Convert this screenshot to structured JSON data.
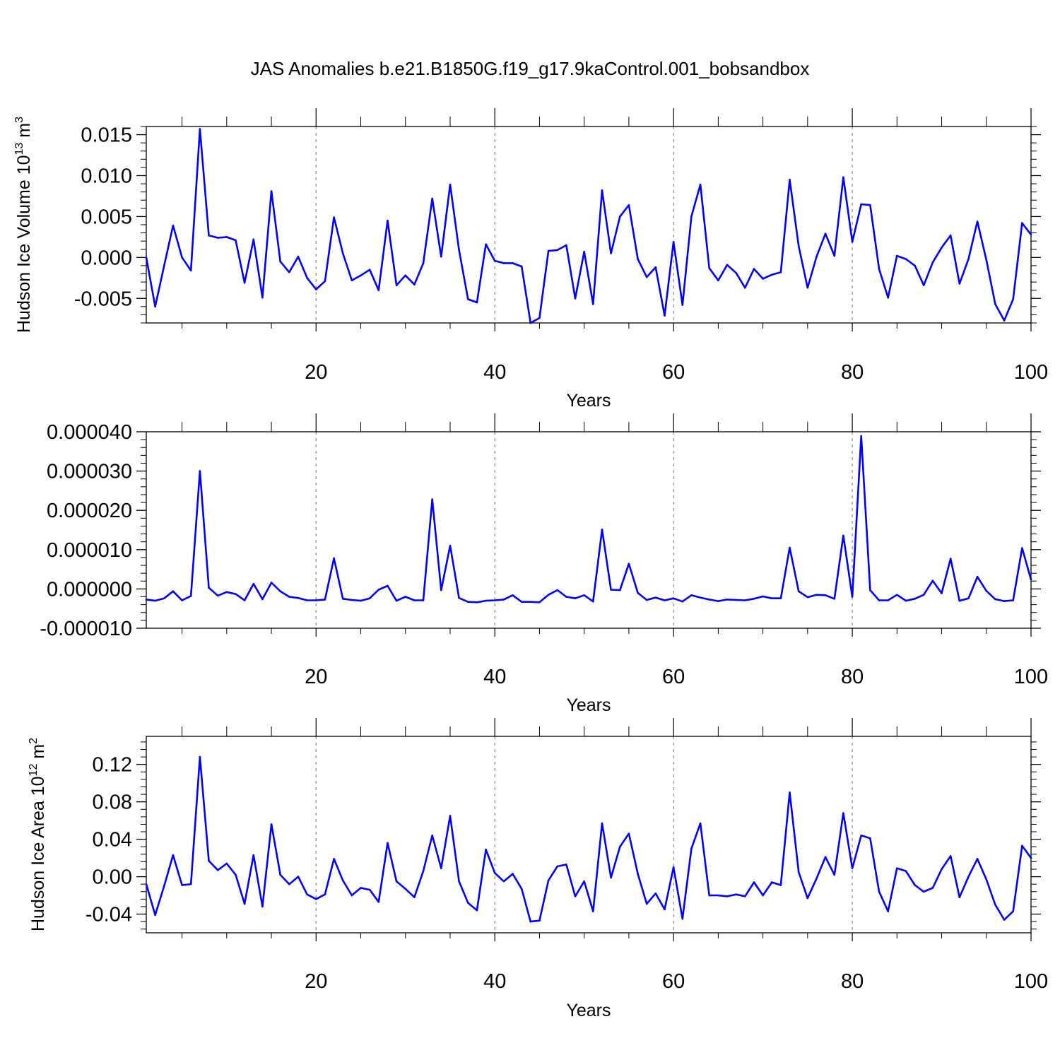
{
  "title": "JAS Anomalies b.e21.B1850G.f19_g17.9kaControl.001_bobsandbox",
  "line_color": "#0000ff",
  "grid_color": "#888888",
  "chart_data": [
    {
      "type": "line",
      "ylabel": "Hudson Ice Volume 10",
      "ylabel_sup": "13",
      "ylabel_unit": " m",
      "ylabel_unit_sup": "3",
      "xlabel": "Years",
      "xlim": [
        1,
        100
      ],
      "ylim": [
        -0.008,
        0.016
      ],
      "xticks": [
        20,
        40,
        60,
        80,
        100
      ],
      "yticks": [
        -0.005,
        0.0,
        0.005,
        0.01,
        0.015
      ],
      "ytick_labels": [
        "-0.005",
        "0.000",
        "0.005",
        "0.010",
        "0.015"
      ],
      "grid": "dashed vertical lines at x=20,40,60,80",
      "series": [
        {
          "values": [
            0.0,
            -0.006,
            -0.001,
            0.0039,
            0.0,
            -0.0016,
            0.0157,
            0.0027,
            0.0024,
            0.0025,
            0.0021,
            -0.0031,
            0.0022,
            -0.0049,
            0.0081,
            -0.0005,
            -0.0018,
            0.0001,
            -0.0025,
            -0.0039,
            -0.0029,
            0.0049,
            0.0005,
            -0.0028,
            -0.0022,
            -0.0015,
            -0.004,
            0.0045,
            -0.0034,
            -0.0022,
            -0.0033,
            -0.0007,
            0.0072,
            0.0001,
            0.0089,
            0.0009,
            -0.0051,
            -0.0055,
            0.0016,
            -0.0004,
            -0.0007,
            -0.0007,
            -0.0011,
            -0.008,
            -0.0074,
            0.0008,
            0.0009,
            0.0015,
            -0.005,
            0.0007,
            -0.0057,
            0.0082,
            0.0005,
            0.005,
            0.0064,
            -0.0002,
            -0.0024,
            -0.0012,
            -0.0071,
            0.0019,
            -0.0058,
            0.005,
            0.0089,
            -0.0013,
            -0.0028,
            -0.0009,
            -0.0019,
            -0.0037,
            -0.0014,
            -0.0026,
            -0.0021,
            -0.0018,
            0.0095,
            0.0014,
            -0.0037,
            0.0001,
            0.0029,
            0.0002,
            0.0098,
            0.0019,
            0.0065,
            0.0064,
            -0.0014,
            -0.0049,
            0.0002,
            -0.0002,
            -0.001,
            -0.0034,
            -0.0006,
            0.0012,
            0.0027,
            -0.0032,
            -0.0002,
            0.0044,
            -0.0003,
            -0.0057,
            -0.0077,
            -0.0051,
            0.0042,
            0.0028
          ]
        }
      ]
    },
    {
      "type": "line",
      "ylabel": "",
      "xlabel": "Years",
      "xlim": [
        1,
        100
      ],
      "ylim": [
        -1e-05,
        4e-05
      ],
      "xticks": [
        20,
        40,
        60,
        80,
        100
      ],
      "yticks": [
        -1e-05,
        0.0,
        1e-05,
        2e-05,
        3e-05,
        4e-05
      ],
      "ytick_labels": [
        "-0.000010",
        "0.000000",
        "0.000010",
        "0.000020",
        "0.000030",
        "0.000040"
      ],
      "grid": "dashed vertical lines at x=20,40,60,80",
      "series": [
        {
          "values": [
            -2.7e-06,
            -3e-06,
            -2.4e-06,
            -6e-07,
            -2.9e-06,
            -1.8e-06,
            3e-05,
            3e-07,
            -1.7e-06,
            -8e-07,
            -1.3e-06,
            -2.9e-06,
            1.3e-06,
            -2.6e-06,
            1.6e-06,
            -6e-07,
            -2e-06,
            -2.3e-06,
            -2.9e-06,
            -2.9e-06,
            -2.7e-06,
            7.8e-06,
            -2.5e-06,
            -2.8e-06,
            -3e-06,
            -2.4e-06,
            -2e-07,
            8e-07,
            -3e-06,
            -2e-06,
            -2.9e-06,
            -2.9e-06,
            2.28e-05,
            -3e-07,
            1.1e-05,
            -2.3e-06,
            -3.3e-06,
            -3.4e-06,
            -3e-06,
            -2.9e-06,
            -2.7e-06,
            -1.6e-06,
            -3.3e-06,
            -3.3e-06,
            -3.4e-06,
            -1.5e-06,
            -3e-07,
            -2e-06,
            -2.4e-06,
            -1.6e-06,
            -3.2e-06,
            1.51e-05,
            -2e-07,
            -3e-07,
            6.4e-06,
            -1e-06,
            -2.8e-06,
            -2.2e-06,
            -2.9e-06,
            -2.4e-06,
            -3.2e-06,
            -1.6e-06,
            -2.2e-06,
            -2.7e-06,
            -3.1e-06,
            -2.7e-06,
            -2.8e-06,
            -2.9e-06,
            -2.5e-06,
            -1.9e-06,
            -2.4e-06,
            -2.4e-06,
            1.05e-05,
            -6e-07,
            -2.1e-06,
            -1.5e-06,
            -1.6e-06,
            -2.5e-06,
            1.36e-05,
            -2e-06,
            3.89e-05,
            -3e-07,
            -2.9e-06,
            -2.9e-06,
            -1.5e-06,
            -3e-06,
            -2.5e-06,
            -1.5e-06,
            2.1e-06,
            -1.1e-06,
            7.7e-06,
            -3e-06,
            -2.4e-06,
            3.1e-06,
            -5e-07,
            -2.6e-06,
            -3.1e-06,
            -2.9e-06,
            1.04e-05,
            2.4e-06
          ]
        }
      ]
    },
    {
      "type": "line",
      "ylabel": "Hudson Ice Area 10",
      "ylabel_sup": "12",
      "ylabel_unit": " m",
      "ylabel_unit_sup": "2",
      "xlabel": "Years",
      "xlim": [
        1,
        100
      ],
      "ylim": [
        -0.06,
        0.15
      ],
      "xticks": [
        20,
        40,
        60,
        80,
        100
      ],
      "yticks": [
        -0.04,
        0.0,
        0.04,
        0.08,
        0.12
      ],
      "ytick_labels": [
        "-0.04",
        "0.00",
        "0.04",
        "0.08",
        "0.12"
      ],
      "grid": "dashed vertical lines at x=20,40,60,80",
      "series": [
        {
          "values": [
            -0.008,
            -0.041,
            -0.01,
            0.023,
            -0.009,
            -0.008,
            0.128,
            0.017,
            0.007,
            0.014,
            0.002,
            -0.029,
            0.023,
            -0.032,
            0.056,
            0.002,
            -0.008,
            0.0,
            -0.019,
            -0.024,
            -0.019,
            0.019,
            -0.004,
            -0.02,
            -0.012,
            -0.014,
            -0.027,
            0.036,
            -0.005,
            -0.013,
            -0.022,
            0.006,
            0.044,
            0.009,
            0.065,
            -0.005,
            -0.028,
            -0.036,
            0.029,
            0.004,
            -0.005,
            0.003,
            -0.013,
            -0.048,
            -0.047,
            -0.004,
            0.011,
            0.013,
            -0.021,
            -0.005,
            -0.037,
            0.057,
            -0.001,
            0.032,
            0.046,
            0.003,
            -0.029,
            -0.018,
            -0.035,
            0.01,
            -0.045,
            0.03,
            0.057,
            -0.02,
            -0.02,
            -0.021,
            -0.019,
            -0.021,
            -0.006,
            -0.02,
            -0.006,
            -0.009,
            0.09,
            0.005,
            -0.023,
            -0.002,
            0.021,
            0.002,
            0.068,
            0.009,
            0.044,
            0.041,
            -0.016,
            -0.037,
            0.009,
            0.006,
            -0.009,
            -0.016,
            -0.012,
            0.008,
            0.022,
            -0.022,
            0.0,
            0.019,
            -0.003,
            -0.03,
            -0.046,
            -0.037,
            0.033,
            0.02
          ]
        }
      ]
    }
  ]
}
